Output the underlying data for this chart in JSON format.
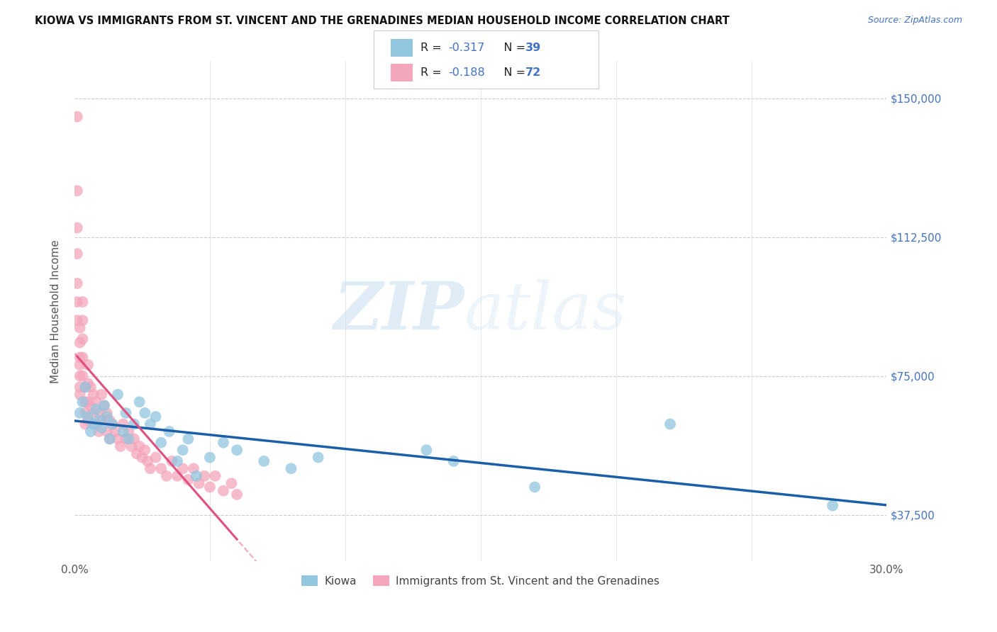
{
  "title": "KIOWA VS IMMIGRANTS FROM ST. VINCENT AND THE GRENADINES MEDIAN HOUSEHOLD INCOME CORRELATION CHART",
  "source": "Source: ZipAtlas.com",
  "ylabel": "Median Household Income",
  "yticks": [
    37500,
    75000,
    112500,
    150000
  ],
  "ytick_labels": [
    "$37,500",
    "$75,000",
    "$112,500",
    "$150,000"
  ],
  "xmin": 0.0,
  "xmax": 0.3,
  "ymin": 25000,
  "ymax": 160000,
  "color_blue": "#92c5de",
  "color_pink": "#f4a6bc",
  "color_blue_line": "#1a5fa8",
  "color_pink_line": "#e05080",
  "watermark_zip": "ZIP",
  "watermark_atlas": "atlas",
  "legend1_label": "Kiowa",
  "legend2_label": "Immigrants from St. Vincent and the Grenadines",
  "blue_x": [
    0.002,
    0.003,
    0.004,
    0.005,
    0.006,
    0.007,
    0.008,
    0.009,
    0.01,
    0.011,
    0.012,
    0.013,
    0.014,
    0.016,
    0.018,
    0.019,
    0.02,
    0.022,
    0.024,
    0.026,
    0.028,
    0.03,
    0.032,
    0.035,
    0.038,
    0.04,
    0.042,
    0.045,
    0.05,
    0.055,
    0.06,
    0.07,
    0.08,
    0.09,
    0.13,
    0.14,
    0.17,
    0.22,
    0.28
  ],
  "blue_y": [
    65000,
    68000,
    72000,
    64000,
    60000,
    62000,
    66000,
    63000,
    61000,
    67000,
    64000,
    58000,
    62000,
    70000,
    60000,
    65000,
    58000,
    62000,
    68000,
    65000,
    62000,
    64000,
    57000,
    60000,
    52000,
    55000,
    58000,
    48000,
    53000,
    57000,
    55000,
    52000,
    50000,
    53000,
    55000,
    52000,
    45000,
    62000,
    40000
  ],
  "pink_x": [
    0.001,
    0.001,
    0.001,
    0.001,
    0.001,
    0.001,
    0.001,
    0.002,
    0.002,
    0.002,
    0.002,
    0.002,
    0.002,
    0.002,
    0.003,
    0.003,
    0.003,
    0.003,
    0.003,
    0.004,
    0.004,
    0.004,
    0.004,
    0.005,
    0.005,
    0.005,
    0.005,
    0.006,
    0.006,
    0.007,
    0.007,
    0.008,
    0.008,
    0.009,
    0.009,
    0.01,
    0.01,
    0.011,
    0.012,
    0.012,
    0.013,
    0.013,
    0.014,
    0.015,
    0.016,
    0.017,
    0.018,
    0.019,
    0.02,
    0.021,
    0.022,
    0.023,
    0.024,
    0.025,
    0.026,
    0.027,
    0.028,
    0.03,
    0.032,
    0.034,
    0.036,
    0.038,
    0.04,
    0.042,
    0.044,
    0.046,
    0.048,
    0.05,
    0.052,
    0.055,
    0.058,
    0.06
  ],
  "pink_y": [
    145000,
    125000,
    115000,
    108000,
    100000,
    95000,
    90000,
    88000,
    84000,
    80000,
    78000,
    75000,
    72000,
    70000,
    95000,
    90000,
    85000,
    80000,
    75000,
    72000,
    68000,
    65000,
    62000,
    78000,
    73000,
    68000,
    63000,
    72000,
    67000,
    70000,
    65000,
    68000,
    62000,
    65000,
    60000,
    70000,
    63000,
    67000,
    65000,
    60000,
    63000,
    58000,
    62000,
    60000,
    58000,
    56000,
    62000,
    58000,
    60000,
    56000,
    58000,
    54000,
    56000,
    53000,
    55000,
    52000,
    50000,
    53000,
    50000,
    48000,
    52000,
    48000,
    50000,
    47000,
    50000,
    46000,
    48000,
    45000,
    48000,
    44000,
    46000,
    43000
  ]
}
